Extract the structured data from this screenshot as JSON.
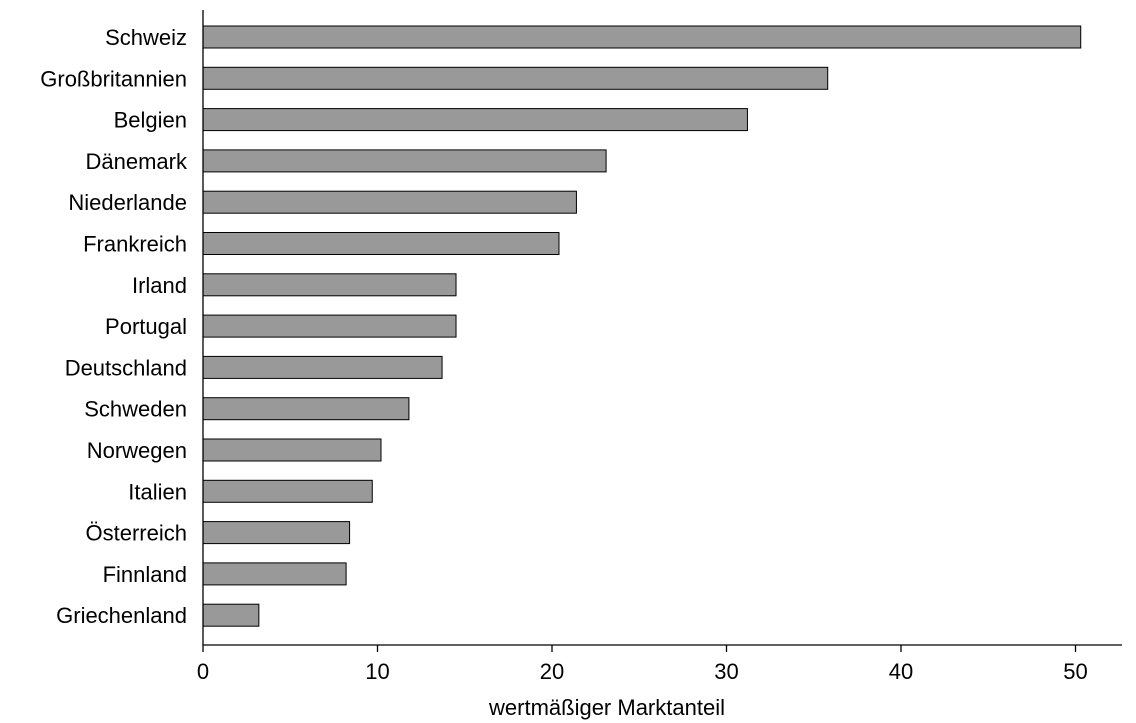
{
  "chart_data": {
    "type": "bar",
    "orientation": "horizontal",
    "categories": [
      "Schweiz",
      "Großbritannien",
      "Belgien",
      "Dänemark",
      "Niederlande",
      "Frankreich",
      "Irland",
      "Portugal",
      "Deutschland",
      "Schweden",
      "Norwegen",
      "Italien",
      "Österreich",
      "Finnland",
      "Griechenland"
    ],
    "values": [
      50.3,
      35.8,
      31.2,
      23.1,
      21.4,
      20.4,
      14.5,
      14.5,
      13.7,
      11.8,
      10.2,
      9.7,
      8.4,
      8.2,
      3.2
    ],
    "title": "",
    "xlabel": "wertmäßiger Marktanteil",
    "ylabel": "",
    "xlim": [
      0,
      53
    ],
    "xticks": [
      0,
      10,
      20,
      30,
      40,
      50
    ],
    "grid": false,
    "legend": "none",
    "bar_color": "#999999",
    "edge_color": "#000000"
  }
}
